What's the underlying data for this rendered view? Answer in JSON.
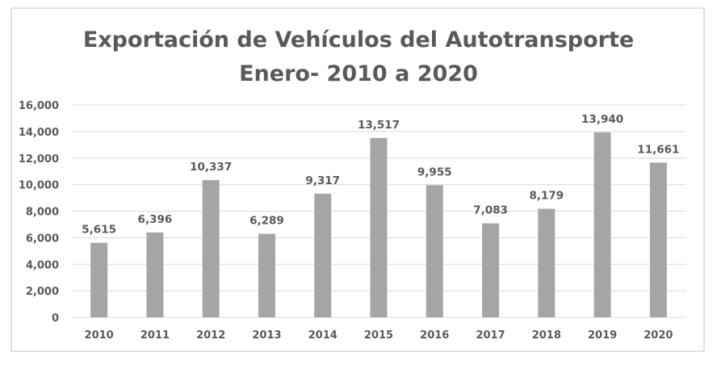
{
  "chart_data": {
    "type": "bar",
    "title_lines": [
      "Exportación de Vehículos del Autotransporte",
      "Enero- 2010 a 2020"
    ],
    "categories": [
      "2010",
      "2011",
      "2012",
      "2013",
      "2014",
      "2015",
      "2016",
      "2017",
      "2018",
      "2019",
      "2020"
    ],
    "values": [
      5615,
      6396,
      10337,
      6289,
      9317,
      13517,
      9955,
      7083,
      8179,
      13940,
      11661
    ],
    "data_labels": [
      "5,615",
      "6,396",
      "10,337",
      "6,289",
      "9,317",
      "13,517",
      "9,955",
      "7,083",
      "8,179",
      "13,940",
      "11,661"
    ],
    "yticks": [
      "0",
      "2,000",
      "4,000",
      "6,000",
      "8,000",
      "10,000",
      "12,000",
      "14,000",
      "16,000"
    ],
    "ylim": [
      0,
      16000
    ],
    "xlabel": "",
    "ylabel": "",
    "grid": true,
    "legend": "none",
    "colors": {
      "bar": "#a5a5a5",
      "text": "#595959",
      "grid": "#d9d9d9"
    }
  }
}
